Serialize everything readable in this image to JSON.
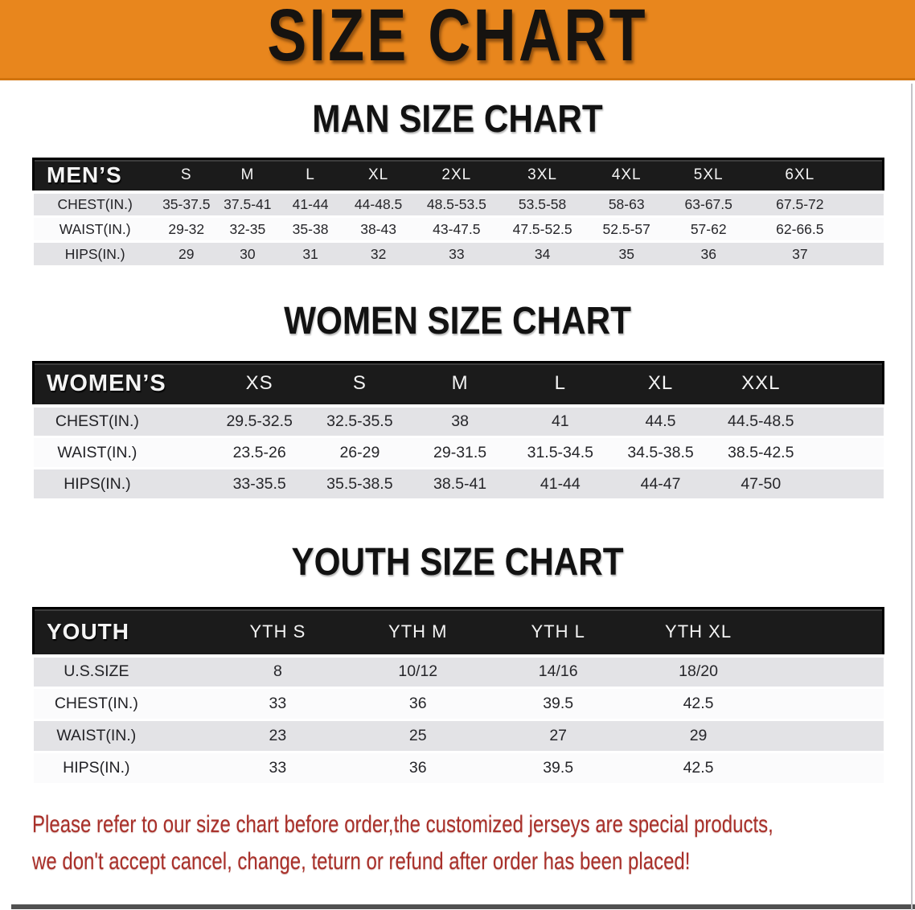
{
  "banner": {
    "title": "SIZE CHART"
  },
  "sections": [
    {
      "heading": "MAN SIZE CHART",
      "group_label": "MEN’S",
      "columns": [
        "S",
        "M",
        "L",
        "XL",
        "2XL",
        "3XL",
        "4XL",
        "5XL",
        "6XL"
      ],
      "rows": [
        {
          "label": "CHEST(IN.)",
          "values": [
            "35-37.5",
            "37.5-41",
            "41-44",
            "44-48.5",
            "48.5-53.5",
            "53.5-58",
            "58-63",
            "63-67.5",
            "67.5-72"
          ]
        },
        {
          "label": "WAIST(IN.)",
          "values": [
            "29-32",
            "32-35",
            "35-38",
            "38-43",
            "43-47.5",
            "47.5-52.5",
            "52.5-57",
            "57-62",
            "62-66.5"
          ]
        },
        {
          "label": "HIPS(IN.)",
          "values": [
            "29",
            "30",
            "31",
            "32",
            "33",
            "34",
            "35",
            "36",
            "37"
          ]
        }
      ]
    },
    {
      "heading": "WOMEN SIZE CHART",
      "group_label": "WOMEN’S",
      "columns": [
        "XS",
        "S",
        "M",
        "L",
        "XL",
        "XXL"
      ],
      "rows": [
        {
          "label": "CHEST(IN.)",
          "values": [
            "29.5-32.5",
            "32.5-35.5",
            "38",
            "41",
            "44.5",
            "44.5-48.5"
          ]
        },
        {
          "label": "WAIST(IN.)",
          "values": [
            "23.5-26",
            "26-29",
            "29-31.5",
            "31.5-34.5",
            "34.5-38.5",
            "38.5-42.5"
          ]
        },
        {
          "label": "HIPS(IN.)",
          "values": [
            "33-35.5",
            "35.5-38.5",
            "38.5-41",
            "41-44",
            "44-47",
            "47-50"
          ]
        }
      ]
    },
    {
      "heading": "YOUTH SIZE CHART",
      "group_label": "YOUTH",
      "columns": [
        "YTH S",
        "YTH M",
        "YTH L",
        "YTH XL"
      ],
      "rows": [
        {
          "label": "U.S.SIZE",
          "values": [
            "8",
            "10/12",
            "14/16",
            "18/20"
          ]
        },
        {
          "label": "CHEST(IN.)",
          "values": [
            "33",
            "36",
            "39.5",
            "42.5"
          ]
        },
        {
          "label": "WAIST(IN.)",
          "values": [
            "23",
            "25",
            "27",
            "29"
          ]
        },
        {
          "label": "HIPS(IN.)",
          "values": [
            "33",
            "36",
            "39.5",
            "42.5"
          ]
        }
      ]
    }
  ],
  "disclaimer": {
    "line1": "Please refer to our size chart before order,the customized jerseys are special products,",
    "line2": "we don't accept cancel, change, teturn or refund after order has been placed!"
  },
  "colors": {
    "banner_orange": "#e8861d",
    "header_black": "#1b1b1b",
    "row_gray": "#e3e3e6",
    "row_white": "#fbfbfc",
    "disclaimer_red": "#a9302a"
  }
}
